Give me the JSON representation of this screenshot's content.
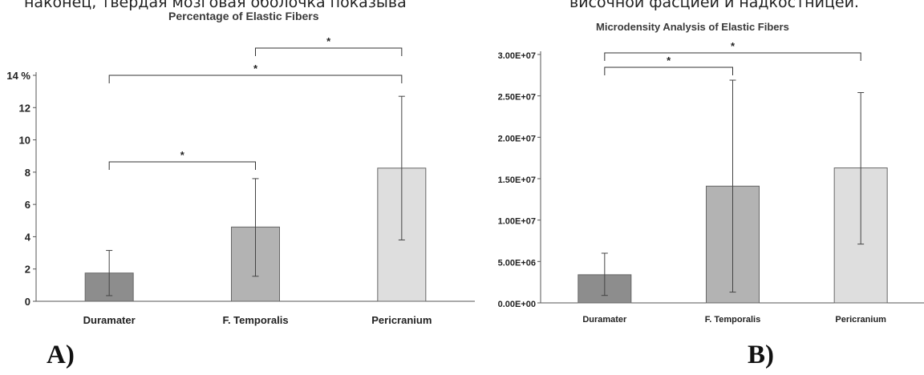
{
  "header_text": {
    "left": "наконец, твердая мозговая оболочка показыва",
    "right": "височной фасцией и надкостницей."
  },
  "panels": [
    {
      "letter": "A)"
    },
    {
      "letter": "B)"
    }
  ],
  "colors": {
    "duramater": "#8d8d8d",
    "temporalis": "#b3b3b3",
    "pericranium": "#dedede",
    "bar_stroke": "#666666"
  },
  "chart_data": [
    {
      "type": "bar",
      "title": "Percentage of Elastic Fibers",
      "categories": [
        "Duramater",
        "F. Temporalis",
        "Pericranium"
      ],
      "values": [
        1.75,
        4.6,
        8.25
      ],
      "error_low": [
        0.35,
        1.55,
        3.8
      ],
      "error_high": [
        3.15,
        7.6,
        12.7
      ],
      "ylim": [
        0,
        14
      ],
      "yticks": [
        "0",
        "2",
        "4",
        "6",
        "8",
        "10",
        "12",
        "14 %"
      ],
      "ytick_values": [
        0,
        2,
        4,
        6,
        8,
        10,
        12,
        14
      ],
      "xlabel": "",
      "ylabel": "",
      "grid": false,
      "significance": [
        {
          "from": 0,
          "to": 1,
          "label": "*"
        },
        {
          "from": 0,
          "to": 2,
          "label": "*"
        },
        {
          "from": 1,
          "to": 2,
          "label": "*"
        }
      ]
    },
    {
      "type": "bar",
      "title": "Microdensity Analysis of Elastic Fibers",
      "categories": [
        "Duramater",
        "F. Temporalis",
        "Pericranium"
      ],
      "values": [
        3400000,
        14100000,
        16300000
      ],
      "error_low": [
        900000,
        1300000,
        7100000
      ],
      "error_high": [
        6000000,
        26900000,
        25400000
      ],
      "ylim": [
        0,
        30000000
      ],
      "yticks": [
        "0.00E+00",
        "5.00E+06",
        "1.00E+07",
        "1.50E+07",
        "2.00E+07",
        "2.50E+07",
        "3.00E+07"
      ],
      "ytick_values": [
        0,
        5000000,
        10000000,
        15000000,
        20000000,
        25000000,
        30000000
      ],
      "xlabel": "",
      "ylabel": "",
      "grid": false,
      "significance": [
        {
          "from": 0,
          "to": 1,
          "label": "*"
        },
        {
          "from": 0,
          "to": 2,
          "label": "*"
        }
      ]
    }
  ]
}
